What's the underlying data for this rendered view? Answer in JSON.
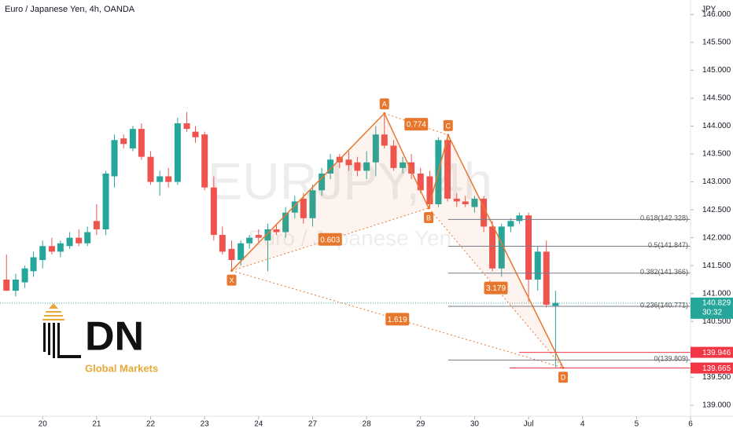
{
  "chart_data": {
    "type": "candlestick",
    "title": "Euro / Japanese Yen, 4h, OANDA",
    "currency": "JPY",
    "watermark": "EURJPY, 4h",
    "watermark_subtitle": "Euro / Japanese Yen",
    "up_color": "#26a69a",
    "down_color": "#ef5350",
    "pattern_color": "#e8772e",
    "grid": false,
    "xlim": [
      -0.79,
      12
    ],
    "ylim": [
      138.8,
      146.26
    ],
    "xticks": [
      {
        "value": 0,
        "label": "20"
      },
      {
        "value": 1,
        "label": "21"
      },
      {
        "value": 2,
        "label": "22"
      },
      {
        "value": 3,
        "label": "23"
      },
      {
        "value": 4,
        "label": "24"
      },
      {
        "value": 5,
        "label": "27"
      },
      {
        "value": 6,
        "label": "28"
      },
      {
        "value": 7,
        "label": "29"
      },
      {
        "value": 8,
        "label": "30"
      },
      {
        "value": 9,
        "label": "Jul"
      },
      {
        "value": 10,
        "label": "4"
      },
      {
        "value": 11,
        "label": "5"
      },
      {
        "value": 12,
        "label": "6"
      }
    ],
    "yticks": [
      {
        "value": 139,
        "label": "139.000"
      },
      {
        "value": 139.5,
        "label": "139.500"
      },
      {
        "value": 140.5,
        "label": "140.500"
      },
      {
        "value": 141,
        "label": "141.000"
      },
      {
        "value": 141.5,
        "label": "141.500"
      },
      {
        "value": 142,
        "label": "142.000"
      },
      {
        "value": 142.5,
        "label": "142.500"
      },
      {
        "value": 143,
        "label": "143.000"
      },
      {
        "value": 143.5,
        "label": "143.500"
      },
      {
        "value": 144,
        "label": "144.000"
      },
      {
        "value": 144.5,
        "label": "144.500"
      },
      {
        "value": 145,
        "label": "145.000"
      },
      {
        "value": 145.5,
        "label": "145.500"
      },
      {
        "value": 146,
        "label": "146.000"
      }
    ],
    "x": [
      -0.67,
      -0.5,
      -0.33,
      -0.17,
      0,
      0.17,
      0.33,
      0.5,
      0.67,
      0.83,
      1,
      1.17,
      1.33,
      1.5,
      1.67,
      1.83,
      2,
      2.17,
      2.33,
      2.5,
      2.67,
      2.83,
      3,
      3.17,
      3.33,
      3.5,
      3.67,
      3.83,
      4,
      4.17,
      4.33,
      4.5,
      4.67,
      4.83,
      5,
      5.17,
      5.33,
      5.5,
      5.67,
      5.83,
      6,
      6.17,
      6.33,
      6.5,
      6.67,
      6.83,
      7,
      7.17,
      7.33,
      7.5,
      7.67,
      7.83,
      8,
      8.17,
      8.33,
      8.5,
      8.67,
      8.83,
      9,
      9.17,
      9.33,
      9.5
    ],
    "open": [
      141.25,
      141.05,
      141.2,
      141.4,
      141.6,
      141.85,
      141.75,
      141.85,
      142.0,
      141.9,
      142.3,
      142.15,
      143.1,
      143.78,
      143.6,
      143.95,
      143.45,
      143.0,
      143.1,
      143.0,
      144.05,
      143.9,
      143.85,
      142.9,
      142.05,
      141.8,
      141.6,
      141.9,
      142.05,
      141.95,
      142.15,
      142.1,
      142.45,
      142.7,
      142.35,
      142.85,
      143.15,
      143.45,
      143.4,
      143.35,
      143.2,
      143.35,
      143.85,
      143.65,
      143.25,
      143.35,
      143.15,
      143.1,
      142.6,
      143.75,
      142.7,
      142.65,
      142.55,
      142.7,
      142.2,
      141.45,
      142.2,
      142.3,
      142.4,
      141.25,
      141.75,
      140.78
    ],
    "high": [
      141.7,
      141.35,
      141.5,
      141.75,
      141.95,
      142.0,
      141.95,
      142.1,
      142.15,
      142.2,
      142.6,
      143.2,
      143.85,
      143.85,
      144.0,
      144.05,
      143.55,
      143.2,
      143.25,
      144.15,
      144.25,
      144.0,
      143.9,
      143.1,
      142.2,
      141.95,
      141.95,
      142.05,
      142.15,
      142.25,
      142.25,
      142.55,
      142.75,
      142.8,
      142.95,
      143.25,
      143.5,
      143.5,
      143.55,
      143.45,
      143.55,
      144.0,
      144.23,
      143.75,
      143.45,
      143.5,
      143.25,
      143.2,
      143.8,
      143.84,
      142.8,
      142.75,
      142.75,
      142.75,
      142.3,
      142.25,
      142.35,
      142.45,
      142.45,
      141.85,
      141.95,
      141.05
    ],
    "low": [
      141.05,
      140.95,
      141.1,
      141.3,
      141.45,
      141.7,
      141.65,
      141.8,
      141.85,
      141.85,
      142.05,
      142.05,
      142.9,
      143.6,
      143.55,
      143.4,
      142.95,
      142.75,
      142.9,
      142.95,
      143.9,
      143.7,
      142.85,
      141.95,
      141.7,
      141.41,
      141.5,
      141.8,
      141.9,
      141.4,
      142.05,
      142.0,
      142.35,
      142.25,
      142.2,
      142.75,
      143.05,
      143.25,
      143.2,
      143.1,
      143.05,
      143.1,
      143.6,
      143.2,
      143.15,
      143.05,
      142.8,
      142.53,
      142.55,
      142.65,
      142.55,
      142.55,
      142.45,
      142.1,
      141.4,
      141.3,
      142.1,
      142.25,
      140.85,
      141.05,
      140.75,
      139.68
    ],
    "close": [
      141.05,
      141.25,
      141.45,
      141.65,
      141.85,
      141.75,
      141.9,
      142.0,
      141.9,
      142.1,
      142.15,
      143.15,
      143.75,
      143.68,
      143.95,
      143.45,
      143.0,
      143.1,
      143.0,
      144.05,
      143.95,
      143.8,
      142.9,
      142.05,
      141.75,
      141.6,
      141.9,
      142.0,
      142.0,
      142.15,
      142.1,
      142.45,
      142.65,
      142.35,
      142.85,
      143.15,
      143.4,
      143.35,
      143.3,
      143.2,
      143.35,
      143.85,
      143.65,
      143.25,
      143.35,
      143.15,
      142.85,
      142.6,
      143.75,
      142.7,
      142.65,
      142.6,
      142.7,
      142.2,
      141.45,
      142.2,
      142.3,
      142.4,
      141.25,
      141.75,
      140.8,
      140.83
    ],
    "pattern_points": [
      {
        "label": "X",
        "x": 3.5,
        "y": 141.41
      },
      {
        "label": "A",
        "x": 6.33,
        "y": 144.23
      },
      {
        "label": "B",
        "x": 7.15,
        "y": 142.53
      },
      {
        "label": "C",
        "x": 7.51,
        "y": 143.84
      },
      {
        "label": "D",
        "x": 9.64,
        "y": 139.67
      }
    ],
    "pattern_ratios": [
      {
        "value": 0.603,
        "label": "0.603"
      },
      {
        "value": 0.774,
        "label": "0.774"
      },
      {
        "value": 3.179,
        "label": "3.179"
      },
      {
        "value": 1.619,
        "label": "1.619"
      }
    ],
    "fib_levels": [
      {
        "value": 142.328,
        "label": "0.618(142.328)"
      },
      {
        "value": 141.847,
        "label": "0.5(141.847)"
      },
      {
        "value": 141.366,
        "label": "0.382(141.366)"
      },
      {
        "value": 140.771,
        "label": "0.236(140.771)"
      },
      {
        "value": 139.809,
        "label": "0(139.809)"
      }
    ],
    "last_price": 140.829,
    "countdown": "30:32",
    "alert_prices": [
      139.946,
      139.665
    ]
  },
  "logo": {
    "text": "DN",
    "subtitle": "Global Markets"
  }
}
